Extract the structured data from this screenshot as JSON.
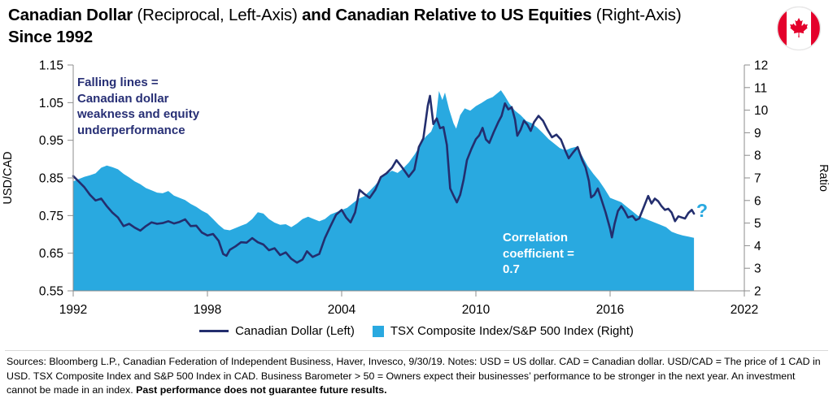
{
  "header": {
    "title_part1": "Canadian Dollar",
    "title_part2": " (Reciprocal, Left-Axis) ",
    "title_part3": "and Canadian Relative to US Equities",
    "title_part4": " (Right-Axis)",
    "title_line2": "Since 1992",
    "flag_icon": "canada-flag-icon"
  },
  "annotations": {
    "falling_lines": "Falling lines =\nCanadian dollar\nweakness and equity\nunderperformance",
    "correlation": "Correlation\ncoefficient =\n0.7",
    "question_mark": "?"
  },
  "legend": [
    {
      "label": "Canadian Dollar (Left)",
      "swatch": "line",
      "color": "#232e6e"
    },
    {
      "label": "TSX Composite Index/S&P 500 Index (Right)",
      "swatch": "square",
      "color": "#29a9e0"
    }
  ],
  "footer": {
    "text": "Sources: Bloomberg L.P., Canadian Federation of Independent Business, Haver, Invesco, 9/30/19. Notes: USD = US dollar. CAD = Canadian dollar. USD/CAD = The price of 1 CAD in USD. TSX Composite Index and S&P 500 Index in CAD. Business Barometer > 50 = Owners expect their businesses’ performance to be stronger in the next year. An investment cannot be made in an index. ",
    "bold_text": "Past performance does not guarantee future results."
  },
  "chart_data": {
    "type": "line",
    "title": "Canadian Dollar (Reciprocal, Left-Axis) and Canadian Relative to US Equities (Right-Axis) Since 1992",
    "grid": false,
    "legend_position": "bottom",
    "x_axis": {
      "min": 1992,
      "max": 2022,
      "ticks": [
        1992,
        1998,
        2004,
        2010,
        2016,
        2022
      ]
    },
    "left_axis": {
      "label": "USD/CAD",
      "min": 0.55,
      "max": 1.15,
      "ticks": [
        "1.15",
        "1.05",
        "0.95",
        "0.85",
        "0.75",
        "0.65",
        "0.55"
      ]
    },
    "right_axis": {
      "label": "Ratio",
      "min": 2,
      "max": 12,
      "ticks": [
        "12",
        "11",
        "10",
        "9",
        "8",
        "7",
        "6",
        "5",
        "4",
        "3",
        "2"
      ]
    },
    "series": [
      {
        "name": "TSX Composite Index/S&P 500 Index (Right)",
        "type": "area",
        "axis": "right",
        "color": "#29a9e0",
        "points": [
          [
            1992,
            6.85
          ],
          [
            1992.25,
            6.95
          ],
          [
            1992.5,
            7.05
          ],
          [
            1992.75,
            7.12
          ],
          [
            1993,
            7.2
          ],
          [
            1993.25,
            7.45
          ],
          [
            1993.5,
            7.55
          ],
          [
            1993.75,
            7.48
          ],
          [
            1994,
            7.38
          ],
          [
            1994.25,
            7.18
          ],
          [
            1994.5,
            7.02
          ],
          [
            1994.75,
            6.85
          ],
          [
            1995,
            6.72
          ],
          [
            1995.25,
            6.55
          ],
          [
            1995.5,
            6.45
          ],
          [
            1995.75,
            6.35
          ],
          [
            1996,
            6.32
          ],
          [
            1996.25,
            6.42
          ],
          [
            1996.5,
            6.22
          ],
          [
            1996.75,
            6.12
          ],
          [
            1997,
            6.02
          ],
          [
            1997.25,
            5.85
          ],
          [
            1997.5,
            5.72
          ],
          [
            1997.75,
            5.55
          ],
          [
            1998,
            5.42
          ],
          [
            1998.25,
            5.18
          ],
          [
            1998.5,
            4.92
          ],
          [
            1998.75,
            4.72
          ],
          [
            1999,
            4.68
          ],
          [
            1999.25,
            4.78
          ],
          [
            1999.5,
            4.88
          ],
          [
            1999.75,
            4.98
          ],
          [
            2000,
            5.18
          ],
          [
            2000.25,
            5.48
          ],
          [
            2000.5,
            5.42
          ],
          [
            2000.75,
            5.18
          ],
          [
            2001,
            5.02
          ],
          [
            2001.25,
            4.92
          ],
          [
            2001.5,
            4.95
          ],
          [
            2001.75,
            4.82
          ],
          [
            2002,
            4.98
          ],
          [
            2002.25,
            5.18
          ],
          [
            2002.5,
            5.28
          ],
          [
            2002.75,
            5.18
          ],
          [
            2003,
            5.08
          ],
          [
            2003.25,
            5.18
          ],
          [
            2003.5,
            5.38
          ],
          [
            2003.75,
            5.48
          ],
          [
            2004,
            5.58
          ],
          [
            2004.25,
            5.68
          ],
          [
            2004.5,
            5.88
          ],
          [
            2004.75,
            6.08
          ],
          [
            2005,
            6.18
          ],
          [
            2005.25,
            6.42
          ],
          [
            2005.5,
            6.68
          ],
          [
            2005.75,
            6.98
          ],
          [
            2006,
            7.18
          ],
          [
            2006.25,
            7.32
          ],
          [
            2006.5,
            7.22
          ],
          [
            2006.75,
            7.42
          ],
          [
            2007,
            7.68
          ],
          [
            2007.25,
            8.02
          ],
          [
            2007.5,
            8.42
          ],
          [
            2007.75,
            8.82
          ],
          [
            2008,
            9.05
          ],
          [
            2008.2,
            9.55
          ],
          [
            2008.35,
            10.85
          ],
          [
            2008.5,
            10.45
          ],
          [
            2008.62,
            10.78
          ],
          [
            2008.8,
            10.05
          ],
          [
            2009,
            9.42
          ],
          [
            2009.12,
            9.18
          ],
          [
            2009.3,
            9.78
          ],
          [
            2009.5,
            10.08
          ],
          [
            2009.75,
            9.98
          ],
          [
            2010,
            10.18
          ],
          [
            2010.25,
            10.32
          ],
          [
            2010.5,
            10.48
          ],
          [
            2010.75,
            10.58
          ],
          [
            2011,
            10.78
          ],
          [
            2011.12,
            10.88
          ],
          [
            2011.3,
            10.62
          ],
          [
            2011.5,
            10.28
          ],
          [
            2011.75,
            9.98
          ],
          [
            2012,
            9.78
          ],
          [
            2012.25,
            9.52
          ],
          [
            2012.5,
            9.42
          ],
          [
            2012.75,
            9.22
          ],
          [
            2013,
            8.98
          ],
          [
            2013.25,
            8.72
          ],
          [
            2013.5,
            8.52
          ],
          [
            2013.75,
            8.32
          ],
          [
            2014,
            8.22
          ],
          [
            2014.25,
            8.32
          ],
          [
            2014.5,
            8.38
          ],
          [
            2014.75,
            7.98
          ],
          [
            2015,
            7.52
          ],
          [
            2015.25,
            7.18
          ],
          [
            2015.5,
            6.88
          ],
          [
            2015.75,
            6.52
          ],
          [
            2016,
            6.12
          ],
          [
            2016.25,
            6.02
          ],
          [
            2016.5,
            5.92
          ],
          [
            2016.75,
            5.72
          ],
          [
            2017,
            5.52
          ],
          [
            2017.25,
            5.32
          ],
          [
            2017.5,
            5.22
          ],
          [
            2017.75,
            5.12
          ],
          [
            2018,
            5.02
          ],
          [
            2018.25,
            4.92
          ],
          [
            2018.5,
            4.82
          ],
          [
            2018.75,
            4.62
          ],
          [
            2019,
            4.52
          ],
          [
            2019.25,
            4.45
          ],
          [
            2019.5,
            4.4
          ],
          [
            2019.75,
            4.35
          ]
        ]
      },
      {
        "name": "Canadian Dollar (Left)",
        "type": "line",
        "axis": "left",
        "color": "#232e6e",
        "points": [
          [
            1992,
            0.855
          ],
          [
            1992.25,
            0.84
          ],
          [
            1992.5,
            0.825
          ],
          [
            1992.75,
            0.805
          ],
          [
            1993,
            0.79
          ],
          [
            1993.25,
            0.795
          ],
          [
            1993.5,
            0.775
          ],
          [
            1993.75,
            0.758
          ],
          [
            1994,
            0.745
          ],
          [
            1994.25,
            0.722
          ],
          [
            1994.5,
            0.728
          ],
          [
            1994.75,
            0.718
          ],
          [
            1995,
            0.71
          ],
          [
            1995.25,
            0.722
          ],
          [
            1995.5,
            0.732
          ],
          [
            1995.75,
            0.728
          ],
          [
            1996,
            0.73
          ],
          [
            1996.25,
            0.735
          ],
          [
            1996.5,
            0.729
          ],
          [
            1996.75,
            0.733
          ],
          [
            1997,
            0.74
          ],
          [
            1997.25,
            0.722
          ],
          [
            1997.5,
            0.723
          ],
          [
            1997.75,
            0.705
          ],
          [
            1998,
            0.697
          ],
          [
            1998.25,
            0.701
          ],
          [
            1998.5,
            0.683
          ],
          [
            1998.7,
            0.648
          ],
          [
            1998.85,
            0.643
          ],
          [
            1999,
            0.659
          ],
          [
            1999.25,
            0.668
          ],
          [
            1999.5,
            0.679
          ],
          [
            1999.75,
            0.678
          ],
          [
            2000,
            0.69
          ],
          [
            2000.25,
            0.679
          ],
          [
            2000.5,
            0.673
          ],
          [
            2000.75,
            0.658
          ],
          [
            2001,
            0.663
          ],
          [
            2001.25,
            0.645
          ],
          [
            2001.5,
            0.652
          ],
          [
            2001.75,
            0.635
          ],
          [
            2002,
            0.625
          ],
          [
            2002.25,
            0.633
          ],
          [
            2002.45,
            0.655
          ],
          [
            2002.7,
            0.64
          ],
          [
            2003,
            0.648
          ],
          [
            2003.25,
            0.69
          ],
          [
            2003.5,
            0.722
          ],
          [
            2003.75,
            0.752
          ],
          [
            2004,
            0.765
          ],
          [
            2004.2,
            0.745
          ],
          [
            2004.4,
            0.732
          ],
          [
            2004.6,
            0.758
          ],
          [
            2004.8,
            0.818
          ],
          [
            2005,
            0.808
          ],
          [
            2005.25,
            0.797
          ],
          [
            2005.5,
            0.818
          ],
          [
            2005.75,
            0.852
          ],
          [
            2006,
            0.862
          ],
          [
            2006.25,
            0.877
          ],
          [
            2006.45,
            0.897
          ],
          [
            2006.7,
            0.878
          ],
          [
            2007,
            0.853
          ],
          [
            2007.25,
            0.872
          ],
          [
            2007.45,
            0.932
          ],
          [
            2007.65,
            0.955
          ],
          [
            2007.85,
            1.042
          ],
          [
            2007.95,
            1.068
          ],
          [
            2008.1,
            0.993
          ],
          [
            2008.25,
            1.008
          ],
          [
            2008.4,
            0.982
          ],
          [
            2008.55,
            0.985
          ],
          [
            2008.7,
            0.938
          ],
          [
            2008.85,
            0.822
          ],
          [
            2009,
            0.803
          ],
          [
            2009.15,
            0.785
          ],
          [
            2009.3,
            0.805
          ],
          [
            2009.45,
            0.845
          ],
          [
            2009.6,
            0.897
          ],
          [
            2009.8,
            0.927
          ],
          [
            2010,
            0.953
          ],
          [
            2010.15,
            0.963
          ],
          [
            2010.3,
            0.983
          ],
          [
            2010.45,
            0.952
          ],
          [
            2010.6,
            0.943
          ],
          [
            2010.8,
            0.972
          ],
          [
            2011,
            0.998
          ],
          [
            2011.15,
            1.015
          ],
          [
            2011.3,
            1.048
          ],
          [
            2011.45,
            1.032
          ],
          [
            2011.6,
            1.038
          ],
          [
            2011.75,
            1.005
          ],
          [
            2011.85,
            0.962
          ],
          [
            2012,
            0.978
          ],
          [
            2012.15,
            1.002
          ],
          [
            2012.3,
            0.992
          ],
          [
            2012.45,
            0.975
          ],
          [
            2012.6,
            0.998
          ],
          [
            2012.8,
            1.015
          ],
          [
            2013,
            1.002
          ],
          [
            2013.2,
            0.978
          ],
          [
            2013.4,
            0.958
          ],
          [
            2013.6,
            0.965
          ],
          [
            2013.8,
            0.952
          ],
          [
            2014,
            0.922
          ],
          [
            2014.15,
            0.902
          ],
          [
            2014.35,
            0.918
          ],
          [
            2014.55,
            0.932
          ],
          [
            2014.75,
            0.898
          ],
          [
            2014.9,
            0.878
          ],
          [
            2015.05,
            0.842
          ],
          [
            2015.15,
            0.798
          ],
          [
            2015.3,
            0.805
          ],
          [
            2015.45,
            0.822
          ],
          [
            2015.6,
            0.795
          ],
          [
            2015.8,
            0.758
          ],
          [
            2016,
            0.715
          ],
          [
            2016.08,
            0.692
          ],
          [
            2016.2,
            0.728
          ],
          [
            2016.35,
            0.762
          ],
          [
            2016.5,
            0.775
          ],
          [
            2016.65,
            0.762
          ],
          [
            2016.8,
            0.745
          ],
          [
            2017,
            0.749
          ],
          [
            2017.15,
            0.738
          ],
          [
            2017.3,
            0.742
          ],
          [
            2017.5,
            0.772
          ],
          [
            2017.7,
            0.802
          ],
          [
            2017.85,
            0.782
          ],
          [
            2018,
            0.795
          ],
          [
            2018.15,
            0.788
          ],
          [
            2018.3,
            0.775
          ],
          [
            2018.45,
            0.765
          ],
          [
            2018.6,
            0.768
          ],
          [
            2018.75,
            0.758
          ],
          [
            2018.9,
            0.735
          ],
          [
            2019.05,
            0.748
          ],
          [
            2019.2,
            0.745
          ],
          [
            2019.35,
            0.742
          ],
          [
            2019.5,
            0.757
          ],
          [
            2019.65,
            0.765
          ],
          [
            2019.75,
            0.755
          ]
        ]
      }
    ]
  }
}
